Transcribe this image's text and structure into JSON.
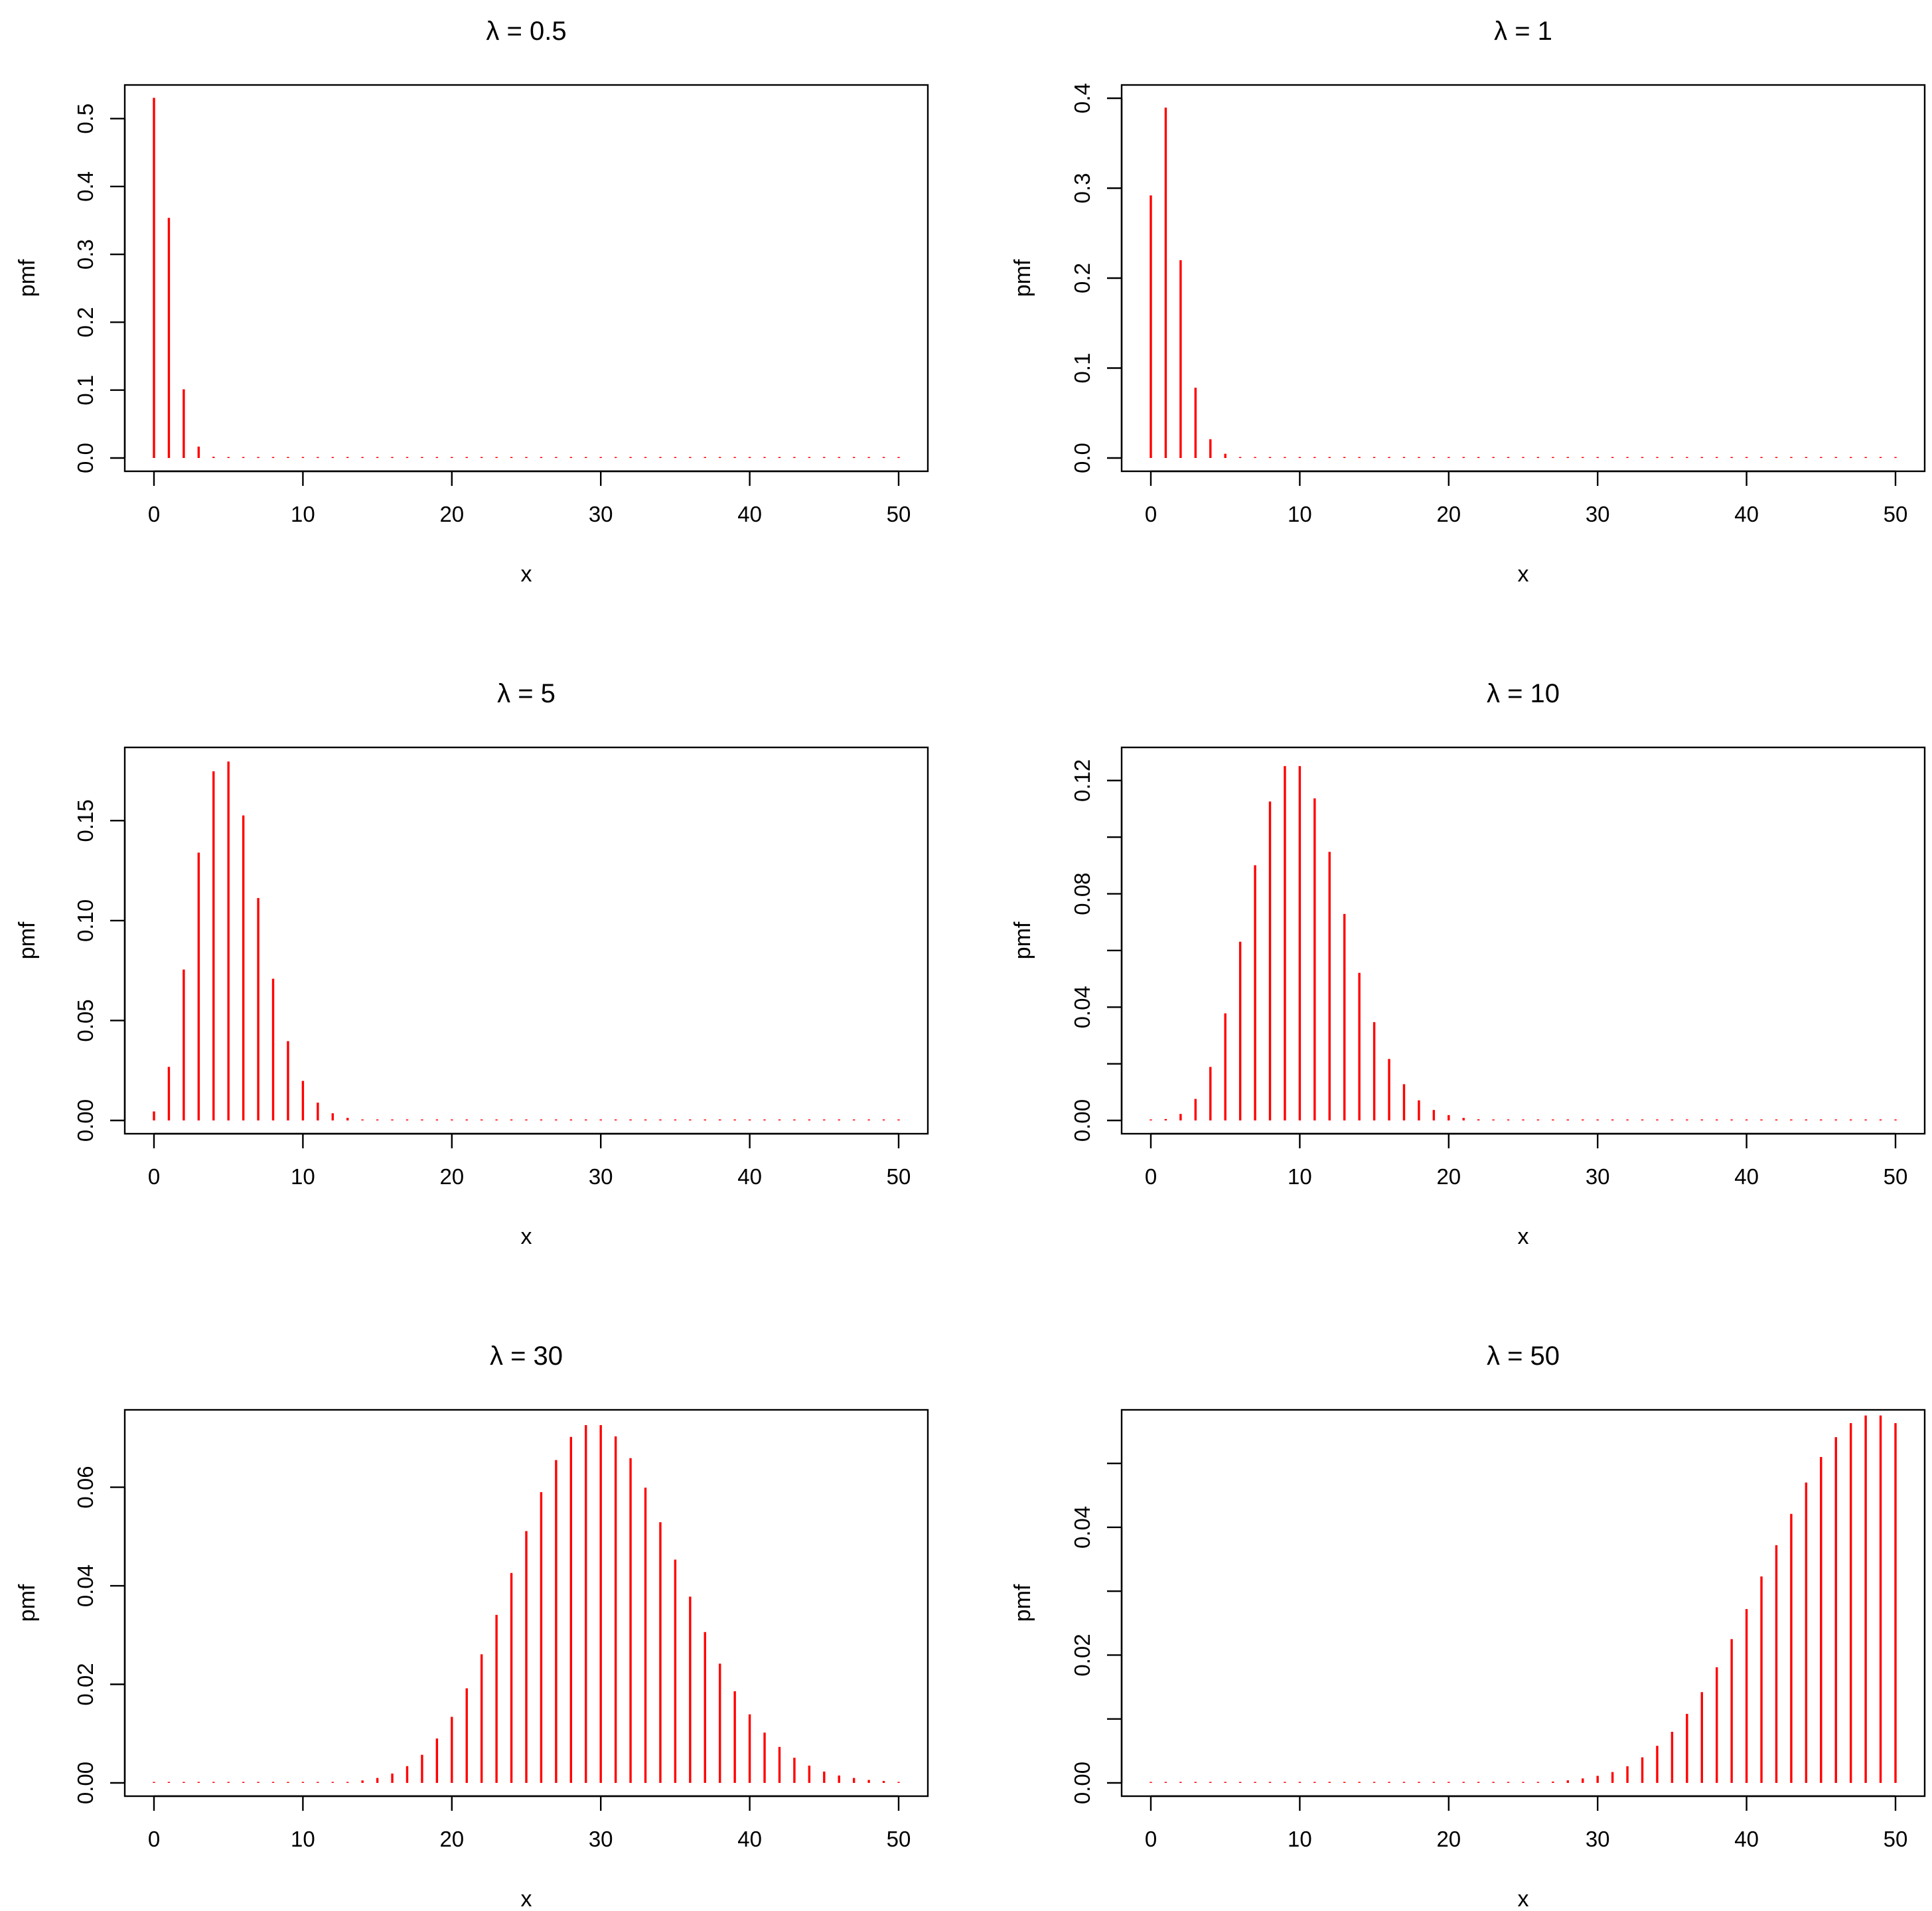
{
  "chart_data": [
    {
      "type": "bar",
      "style": "stem",
      "title": "λ = 0.5",
      "xlabel": "x",
      "ylabel": "pmf",
      "xlim": [
        0,
        50
      ],
      "ylim": [
        0,
        0.53
      ],
      "x_ticks": [
        0,
        10,
        20,
        30,
        40,
        50
      ],
      "y_ticks": [
        0.0,
        0.1,
        0.2,
        0.3,
        0.4,
        0.5
      ],
      "y_tick_labels": [
        "0.0",
        "0.1",
        "0.2",
        "0.3",
        "0.4",
        "0.5"
      ],
      "color": "#ff0000",
      "lambda": 0.5,
      "x": [
        0,
        1,
        2,
        3,
        4,
        5,
        6,
        7,
        8,
        9,
        10,
        11,
        12,
        13,
        14,
        15,
        16,
        17,
        18,
        19,
        20,
        21,
        22,
        23,
        24,
        25,
        26,
        27,
        28,
        29,
        30,
        31,
        32,
        33,
        34,
        35,
        36,
        37,
        38,
        39,
        40,
        41,
        42,
        43,
        44,
        45,
        46,
        47,
        48,
        49,
        50
      ],
      "values": [
        0.5306,
        0.3538,
        0.1012,
        0.0168,
        0.0018,
        0.0001,
        0,
        0,
        0,
        0,
        0,
        0,
        0,
        0,
        0,
        0,
        0,
        0,
        0,
        0,
        0,
        0,
        0,
        0,
        0,
        0,
        0,
        0,
        0,
        0,
        0,
        0,
        0,
        0,
        0,
        0,
        0,
        0,
        0,
        0,
        0,
        0,
        0,
        0,
        0,
        0,
        0,
        0,
        0,
        0,
        0
      ]
    },
    {
      "type": "bar",
      "style": "stem",
      "title": "λ = 1",
      "xlabel": "x",
      "ylabel": "pmf",
      "xlim": [
        0,
        50
      ],
      "ylim": [
        0,
        0.4
      ],
      "x_ticks": [
        0,
        10,
        20,
        30,
        40,
        50
      ],
      "y_ticks": [
        0.0,
        0.1,
        0.2,
        0.3,
        0.4
      ],
      "y_tick_labels": [
        "0.0",
        "0.1",
        "0.2",
        "0.3",
        "0.4"
      ],
      "color": "#ff0000",
      "lambda": 1,
      "x": [
        0,
        1,
        2,
        3,
        4,
        5,
        6,
        7,
        8,
        9,
        10,
        11,
        12,
        13,
        14,
        15,
        16,
        17,
        18,
        19,
        20,
        21,
        22,
        23,
        24,
        25,
        26,
        27,
        28,
        29,
        30,
        31,
        32,
        33,
        34,
        35,
        36,
        37,
        38,
        39,
        40,
        41,
        42,
        43,
        44,
        45,
        46,
        47,
        48,
        49,
        50
      ],
      "values": [
        0.292,
        0.3896,
        0.2199,
        0.0781,
        0.0209,
        0.0047,
        0.0008,
        0.0001,
        0,
        0,
        0,
        0,
        0,
        0,
        0,
        0,
        0,
        0,
        0,
        0,
        0,
        0,
        0,
        0,
        0,
        0,
        0,
        0,
        0,
        0,
        0,
        0,
        0,
        0,
        0,
        0,
        0,
        0,
        0,
        0,
        0,
        0,
        0,
        0,
        0,
        0,
        0,
        0,
        0,
        0,
        0
      ]
    },
    {
      "type": "bar",
      "style": "stem",
      "title": "λ = 5",
      "xlabel": "x",
      "ylabel": "pmf",
      "xlim": [
        0,
        50
      ],
      "ylim": [
        0,
        0.18
      ],
      "x_ticks": [
        0,
        10,
        20,
        30,
        40,
        50
      ],
      "y_ticks": [
        0.0,
        0.05,
        0.1,
        0.15
      ],
      "y_tick_labels": [
        "0.00",
        "0.05",
        "0.10",
        "0.15"
      ],
      "color": "#ff0000",
      "lambda": 5,
      "x": [
        0,
        1,
        2,
        3,
        4,
        5,
        6,
        7,
        8,
        9,
        10,
        11,
        12,
        13,
        14,
        15,
        16,
        17,
        18,
        19,
        20,
        21,
        22,
        23,
        24,
        25,
        26,
        27,
        28,
        29,
        30,
        31,
        32,
        33,
        34,
        35,
        36,
        37,
        38,
        39,
        40,
        41,
        42,
        43,
        44,
        45,
        46,
        47,
        48,
        49,
        50
      ],
      "values": [
        0.0045,
        0.0268,
        0.0755,
        0.134,
        0.1747,
        0.1796,
        0.1526,
        0.1113,
        0.0709,
        0.0397,
        0.0198,
        0.0089,
        0.0036,
        0.0013,
        0.0005,
        0.0001,
        0,
        0,
        0,
        0,
        0,
        0,
        0,
        0,
        0,
        0,
        0,
        0,
        0,
        0,
        0,
        0,
        0,
        0,
        0,
        0,
        0,
        0,
        0,
        0,
        0,
        0,
        0,
        0,
        0,
        0,
        0,
        0,
        0,
        0,
        0
      ]
    },
    {
      "type": "bar",
      "style": "stem",
      "title": "λ = 10",
      "xlabel": "x",
      "ylabel": "pmf",
      "xlim": [
        0,
        50
      ],
      "ylim": [
        0,
        0.127
      ],
      "x_ticks": [
        0,
        10,
        20,
        30,
        40,
        50
      ],
      "y_ticks": [
        0.0,
        0.04,
        0.08,
        0.12
      ],
      "y_tick_labels": [
        "0.00",
        "0.04",
        "0.08",
        "0.12"
      ],
      "y_minor_ticks": [
        0.02,
        0.06,
        0.1
      ],
      "color": "#ff0000",
      "lambda": 10,
      "x": [
        0,
        1,
        2,
        3,
        4,
        5,
        6,
        7,
        8,
        9,
        10,
        11,
        12,
        13,
        14,
        15,
        16,
        17,
        18,
        19,
        20,
        21,
        22,
        23,
        24,
        25,
        26,
        27,
        28,
        29,
        30,
        31,
        32,
        33,
        34,
        35,
        36,
        37,
        38,
        39,
        40,
        41,
        42,
        43,
        44,
        45,
        46,
        47,
        48,
        49,
        50
      ],
      "values": [
        0.0001,
        0.0005,
        0.0023,
        0.0076,
        0.0189,
        0.0378,
        0.0631,
        0.0901,
        0.1126,
        0.1251,
        0.1251,
        0.1137,
        0.0948,
        0.0729,
        0.0521,
        0.0347,
        0.0217,
        0.0128,
        0.0071,
        0.0037,
        0.0019,
        0.0009,
        0.0004,
        0.0002,
        0.0001,
        0,
        0,
        0,
        0,
        0,
        0,
        0,
        0,
        0,
        0,
        0,
        0,
        0,
        0,
        0,
        0,
        0,
        0,
        0,
        0,
        0,
        0,
        0,
        0,
        0,
        0
      ]
    },
    {
      "type": "bar",
      "style": "stem",
      "title": "λ = 30",
      "xlabel": "x",
      "ylabel": "pmf",
      "xlim": [
        0,
        50
      ],
      "ylim": [
        0,
        0.073
      ],
      "x_ticks": [
        0,
        10,
        20,
        30,
        40,
        50
      ],
      "y_ticks": [
        0.0,
        0.02,
        0.04,
        0.06
      ],
      "y_tick_labels": [
        "0.00",
        "0.02",
        "0.04",
        "0.06"
      ],
      "color": "#ff0000",
      "lambda": 30,
      "x": [
        0,
        1,
        2,
        3,
        4,
        5,
        6,
        7,
        8,
        9,
        10,
        11,
        12,
        13,
        14,
        15,
        16,
        17,
        18,
        19,
        20,
        21,
        22,
        23,
        24,
        25,
        26,
        27,
        28,
        29,
        30,
        31,
        32,
        33,
        34,
        35,
        36,
        37,
        38,
        39,
        40,
        41,
        42,
        43,
        44,
        45,
        46,
        47,
        48,
        49,
        50
      ],
      "values": [
        0,
        0,
        0,
        0,
        0,
        0,
        0,
        0,
        0,
        0,
        0,
        0,
        0.0001,
        0.0002,
        0.0005,
        0.001,
        0.0019,
        0.0034,
        0.0057,
        0.009,
        0.0134,
        0.0192,
        0.0261,
        0.0341,
        0.0426,
        0.0511,
        0.059,
        0.0655,
        0.0702,
        0.0726,
        0.0726,
        0.0703,
        0.0659,
        0.0599,
        0.0529,
        0.0453,
        0.0378,
        0.0306,
        0.0242,
        0.0186,
        0.0139,
        0.0102,
        0.0073,
        0.0051,
        0.0035,
        0.0023,
        0.0015,
        0.001,
        0.0006,
        0.0004,
        0.0002
      ]
    },
    {
      "type": "bar",
      "style": "stem",
      "title": "λ = 50",
      "xlabel": "x",
      "ylabel": "pmf",
      "xlim": [
        0,
        50
      ],
      "ylim": [
        0,
        0.0563
      ],
      "x_ticks": [
        0,
        10,
        20,
        30,
        40,
        50
      ],
      "y_ticks": [
        0.0,
        0.02,
        0.04
      ],
      "y_tick_labels": [
        "0.00",
        "0.02",
        "0.04"
      ],
      "y_minor_ticks": [
        0.01,
        0.03,
        0.05
      ],
      "color": "#ff0000",
      "lambda": 50,
      "x": [
        0,
        1,
        2,
        3,
        4,
        5,
        6,
        7,
        8,
        9,
        10,
        11,
        12,
        13,
        14,
        15,
        16,
        17,
        18,
        19,
        20,
        21,
        22,
        23,
        24,
        25,
        26,
        27,
        28,
        29,
        30,
        31,
        32,
        33,
        34,
        35,
        36,
        37,
        38,
        39,
        40,
        41,
        42,
        43,
        44,
        45,
        46,
        47,
        48,
        49,
        50
      ],
      "values": [
        0,
        0,
        0,
        0,
        0,
        0,
        0,
        0,
        0,
        0,
        0,
        0,
        0,
        0,
        0,
        0,
        0,
        0,
        0,
        0,
        0,
        0,
        0,
        0,
        0,
        0.0001,
        0.0001,
        0.0002,
        0.0004,
        0.0007,
        0.0011,
        0.0017,
        0.0026,
        0.004,
        0.0058,
        0.008,
        0.0108,
        0.0142,
        0.0181,
        0.0225,
        0.0272,
        0.0323,
        0.0372,
        0.0421,
        0.047,
        0.051,
        0.0541,
        0.0563,
        0.0575,
        0.0575,
        0.0563
      ]
    }
  ]
}
